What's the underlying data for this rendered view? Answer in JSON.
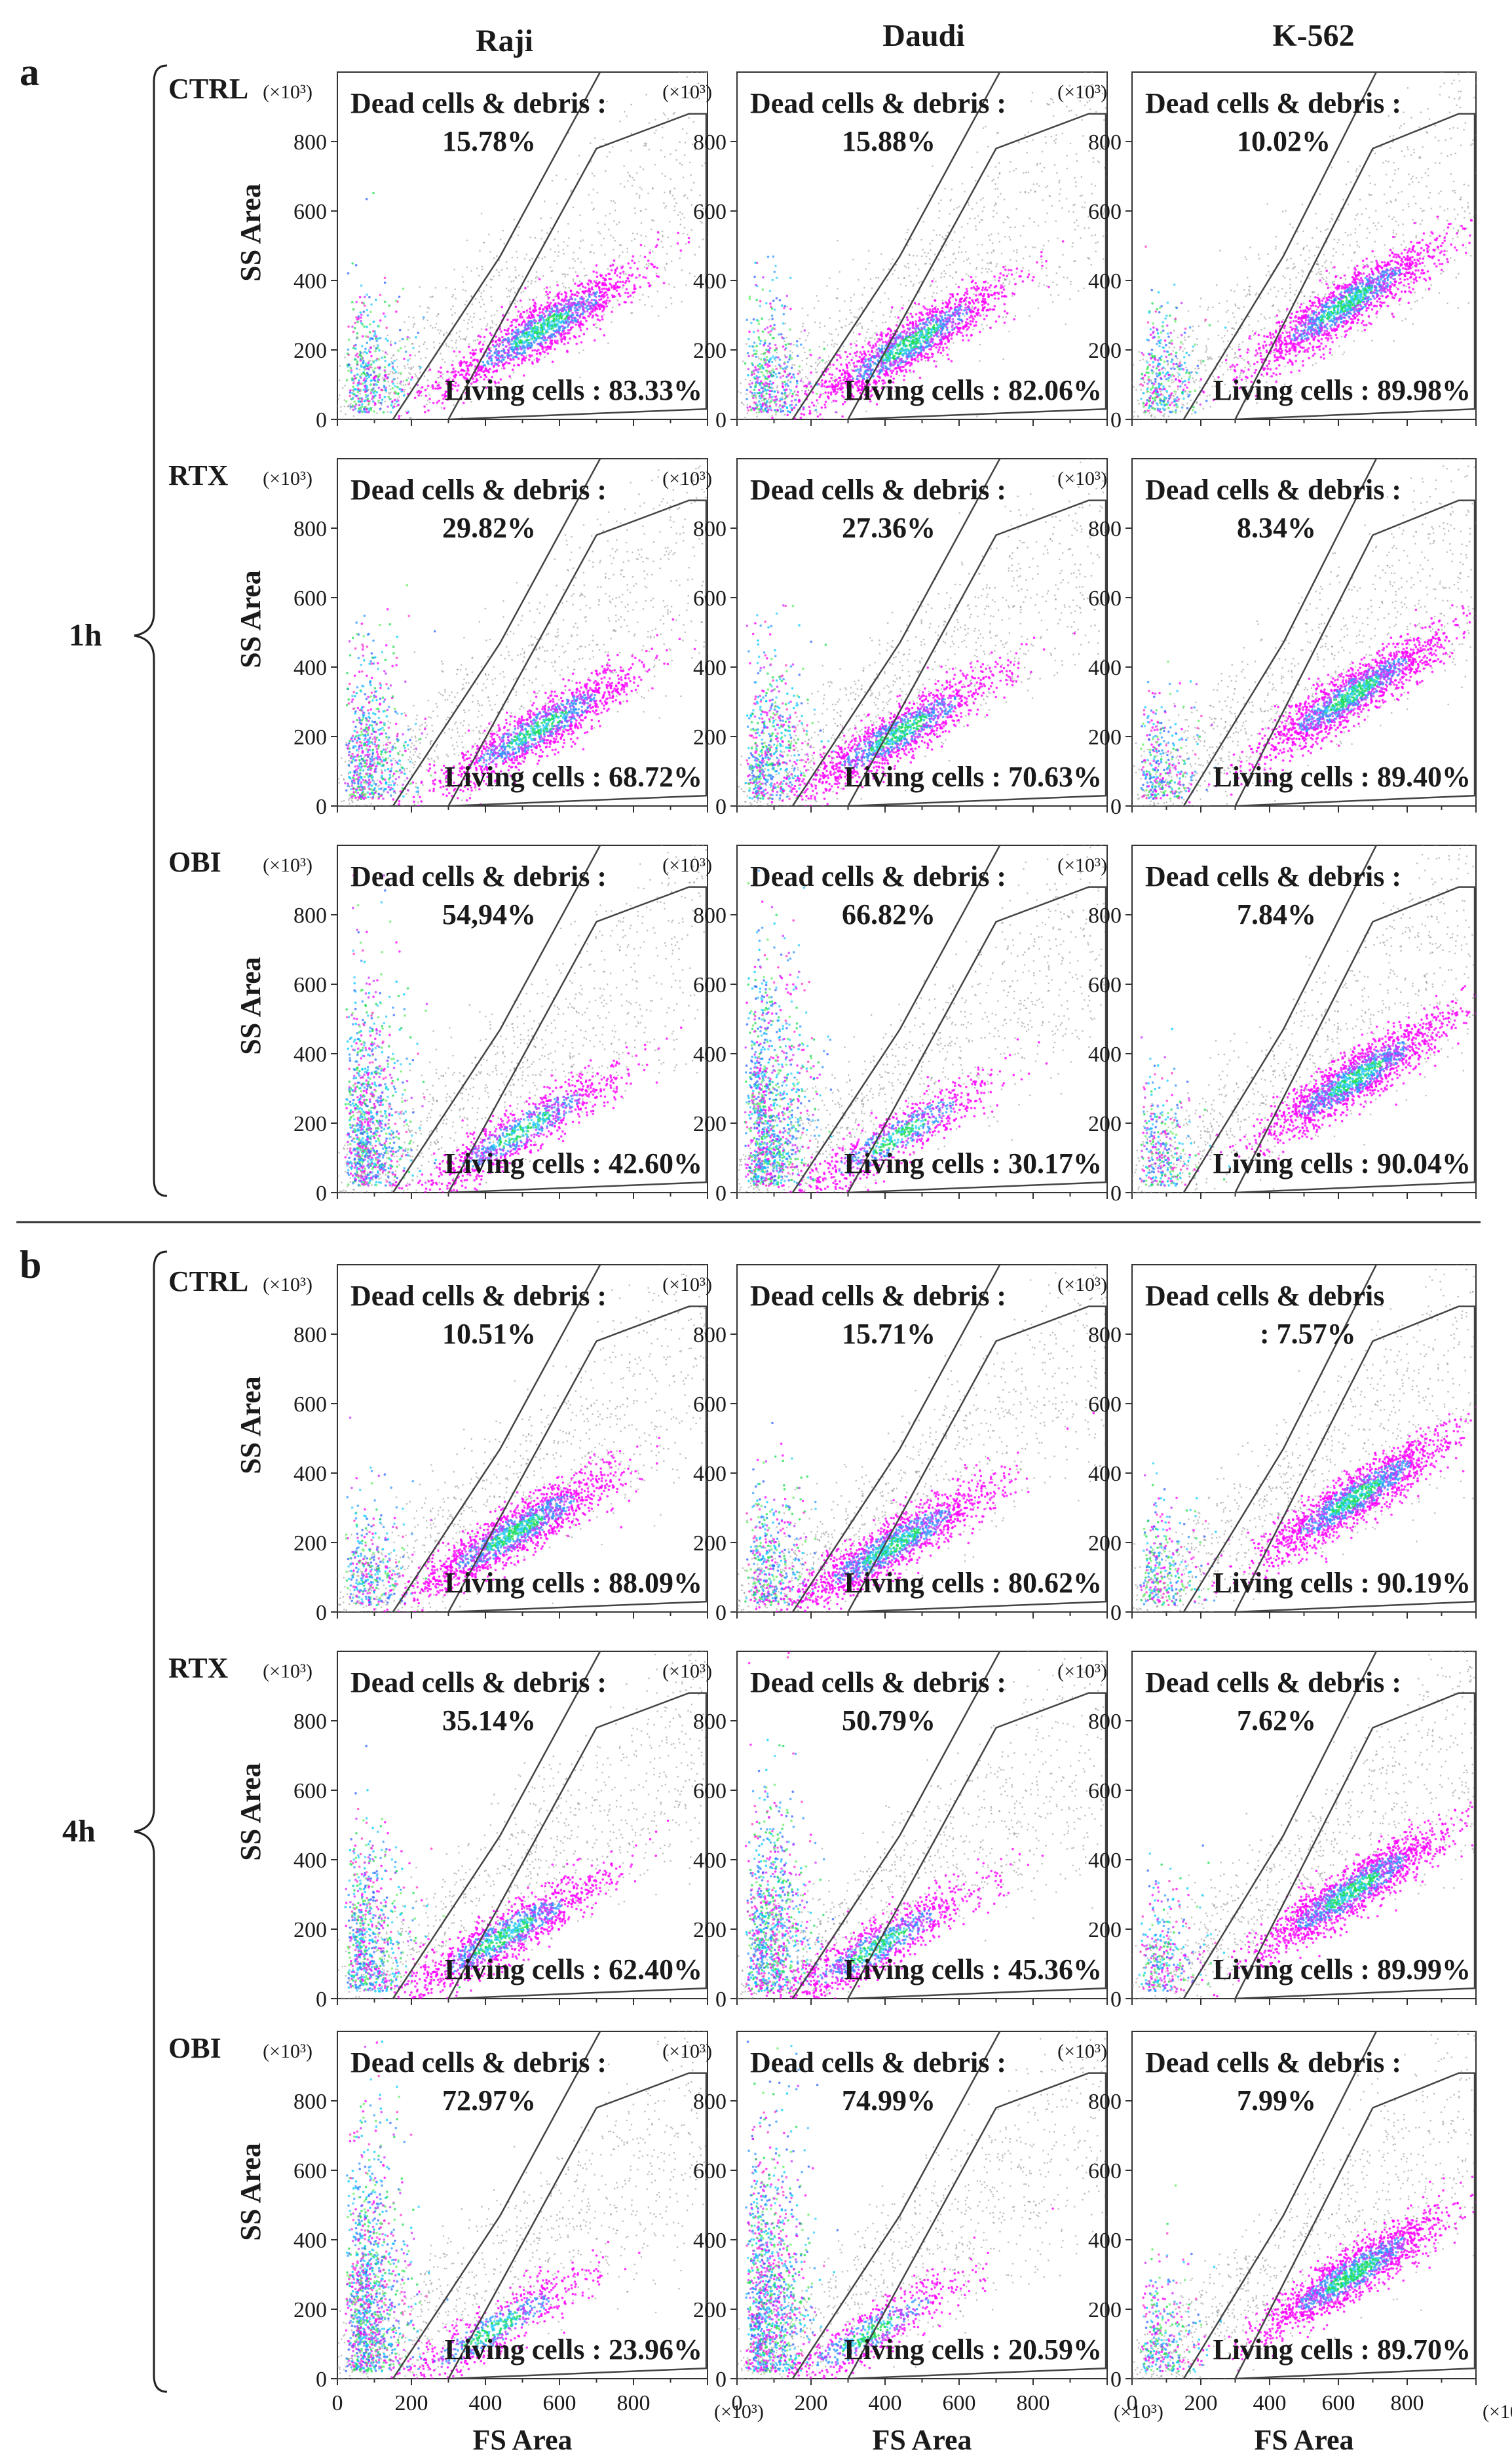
{
  "figure": {
    "panel_a_label": "a",
    "panel_b_label": "b",
    "columns": [
      "Raji",
      "Daudi",
      "K-562"
    ],
    "rows": [
      "CTRL",
      "RTX",
      "OBI"
    ],
    "time_labels": [
      "1h",
      "4h"
    ],
    "dead_label": "Dead cells & debris :",
    "dead_label_split": [
      "Dead cells & debris",
      ": 7.57%"
    ],
    "living_prefix": "Living cells : ",
    "y_multiplier": "(×10³)",
    "x_multiplier": "(×10³)",
    "ylabel": "SS Area",
    "xlabel": "FS Area",
    "yticks": [
      "0",
      "200",
      "400",
      "600",
      "800"
    ],
    "xticks": [
      "0",
      "200",
      "400",
      "600",
      "800"
    ]
  },
  "chart_data": [
    {
      "type": "scatter",
      "panel": "a",
      "time": "1h",
      "treatment": "CTRL",
      "cell_line": "Raji",
      "dead_debris_pct": "15.78%",
      "living_pct": "83.33%",
      "xlabel": "",
      "ylabel": "SS Area",
      "xlim": [
        0,
        1000
      ],
      "ylim": [
        0,
        1000
      ],
      "cluster": [
        550,
        260
      ]
    },
    {
      "type": "scatter",
      "panel": "a",
      "time": "1h",
      "treatment": "CTRL",
      "cell_line": "Daudi",
      "dead_debris_pct": "15.88%",
      "living_pct": "82.06%",
      "xlabel": "",
      "ylabel": "",
      "xlim": [
        0,
        1000
      ],
      "ylim": [
        0,
        1000
      ],
      "cluster": [
        470,
        220
      ]
    },
    {
      "type": "scatter",
      "panel": "a",
      "time": "1h",
      "treatment": "CTRL",
      "cell_line": "K-562",
      "dead_debris_pct": "10.02%",
      "living_pct": "89.98%",
      "xlabel": "",
      "ylabel": "",
      "xlim": [
        0,
        1000
      ],
      "ylim": [
        0,
        1000
      ],
      "cluster": [
        620,
        330
      ]
    },
    {
      "type": "scatter",
      "panel": "a",
      "time": "1h",
      "treatment": "RTX",
      "cell_line": "Raji",
      "dead_debris_pct": "29.82%",
      "living_pct": "68.72%",
      "xlabel": "",
      "ylabel": "SS Area",
      "xlim": [
        0,
        1000
      ],
      "ylim": [
        0,
        1000
      ],
      "cluster": [
        540,
        220
      ]
    },
    {
      "type": "scatter",
      "panel": "a",
      "time": "1h",
      "treatment": "RTX",
      "cell_line": "Daudi",
      "dead_debris_pct": "27.36%",
      "living_pct": "70.63%",
      "xlabel": "",
      "ylabel": "",
      "xlim": [
        0,
        1000
      ],
      "ylim": [
        0,
        1000
      ],
      "cluster": [
        440,
        210
      ]
    },
    {
      "type": "scatter",
      "panel": "a",
      "time": "1h",
      "treatment": "RTX",
      "cell_line": "K-562",
      "dead_debris_pct": "8.34%",
      "living_pct": "89.40%",
      "xlabel": "",
      "ylabel": "",
      "xlim": [
        0,
        1000
      ],
      "ylim": [
        0,
        1000
      ],
      "cluster": [
        640,
        320
      ]
    },
    {
      "type": "scatter",
      "panel": "a",
      "time": "1h",
      "treatment": "OBI",
      "cell_line": "Raji",
      "dead_debris_pct": "54,94%",
      "living_pct": "42.60%",
      "xlabel": "",
      "ylabel": "SS Area",
      "xlim": [
        0,
        1000
      ],
      "ylim": [
        0,
        1000
      ],
      "cluster": [
        500,
        180
      ]
    },
    {
      "type": "scatter",
      "panel": "a",
      "time": "1h",
      "treatment": "OBI",
      "cell_line": "Daudi",
      "dead_debris_pct": "66.82%",
      "living_pct": "30.17%",
      "xlabel": "",
      "ylabel": "",
      "xlim": [
        0,
        1000
      ],
      "ylim": [
        0,
        1000
      ],
      "cluster": [
        430,
        160
      ]
    },
    {
      "type": "scatter",
      "panel": "a",
      "time": "1h",
      "treatment": "OBI",
      "cell_line": "K-562",
      "dead_debris_pct": "7.84%",
      "living_pct": "90.04%",
      "xlabel": "",
      "ylabel": "",
      "xlim": [
        0,
        1000
      ],
      "ylim": [
        0,
        1000
      ],
      "cluster": [
        650,
        330
      ]
    },
    {
      "type": "scatter",
      "panel": "b",
      "time": "4h",
      "treatment": "CTRL",
      "cell_line": "Raji",
      "dead_debris_pct": "10.51%",
      "living_pct": "88.09%",
      "xlabel": "",
      "ylabel": "SS Area",
      "xlim": [
        0,
        1000
      ],
      "ylim": [
        0,
        1000
      ],
      "cluster": [
        480,
        230
      ]
    },
    {
      "type": "scatter",
      "panel": "b",
      "time": "4h",
      "treatment": "CTRL",
      "cell_line": "Daudi",
      "dead_debris_pct": "15.71%",
      "living_pct": "80.62%",
      "xlabel": "",
      "ylabel": "",
      "xlim": [
        0,
        1000
      ],
      "ylim": [
        0,
        1000
      ],
      "cluster": [
        420,
        190
      ]
    },
    {
      "type": "scatter",
      "panel": "b",
      "time": "4h",
      "treatment": "CTRL",
      "cell_line": "K-562",
      "dead_debris_pct": ": 7.57%",
      "living_pct": "90.19%",
      "xlabel": "",
      "ylabel": "",
      "xlim": [
        0,
        1000
      ],
      "ylim": [
        0,
        1000
      ],
      "cluster": [
        650,
        330
      ]
    },
    {
      "type": "scatter",
      "panel": "b",
      "time": "4h",
      "treatment": "RTX",
      "cell_line": "Raji",
      "dead_debris_pct": "35.14%",
      "living_pct": "62.40%",
      "xlabel": "",
      "ylabel": "SS Area",
      "xlim": [
        0,
        1000
      ],
      "ylim": [
        0,
        1000
      ],
      "cluster": [
        450,
        180
      ]
    },
    {
      "type": "scatter",
      "panel": "b",
      "time": "4h",
      "treatment": "RTX",
      "cell_line": "Daudi",
      "dead_debris_pct": "50.79%",
      "living_pct": "45.36%",
      "xlabel": "",
      "ylabel": "",
      "xlim": [
        0,
        1000
      ],
      "ylim": [
        0,
        1000
      ],
      "cluster": [
        380,
        150
      ]
    },
    {
      "type": "scatter",
      "panel": "b",
      "time": "4h",
      "treatment": "RTX",
      "cell_line": "K-562",
      "dead_debris_pct": "7.62%",
      "living_pct": "89.99%",
      "xlabel": "",
      "ylabel": "",
      "xlim": [
        0,
        1000
      ],
      "ylim": [
        0,
        1000
      ],
      "cluster": [
        640,
        310
      ]
    },
    {
      "type": "scatter",
      "panel": "b",
      "time": "4h",
      "treatment": "OBI",
      "cell_line": "Raji",
      "dead_debris_pct": "72.97%",
      "living_pct": "23.96%",
      "xlabel": "FS Area",
      "ylabel": "SS Area",
      "xlim": [
        0,
        1000
      ],
      "ylim": [
        0,
        1000
      ],
      "cluster": [
        420,
        140
      ]
    },
    {
      "type": "scatter",
      "panel": "b",
      "time": "4h",
      "treatment": "OBI",
      "cell_line": "Daudi",
      "dead_debris_pct": "74.99%",
      "living_pct": "20.59%",
      "xlabel": "FS Area",
      "ylabel": "",
      "xlim": [
        0,
        1000
      ],
      "ylim": [
        0,
        1000
      ],
      "cluster": [
        360,
        130
      ]
    },
    {
      "type": "scatter",
      "panel": "b",
      "time": "4h",
      "treatment": "OBI",
      "cell_line": "K-562",
      "dead_debris_pct": "7.99%",
      "living_pct": "89.70%",
      "xlabel": "FS Area",
      "ylabel": "",
      "xlim": [
        0,
        1000
      ],
      "ylim": [
        0,
        1000
      ],
      "cluster": [
        640,
        300
      ]
    }
  ]
}
